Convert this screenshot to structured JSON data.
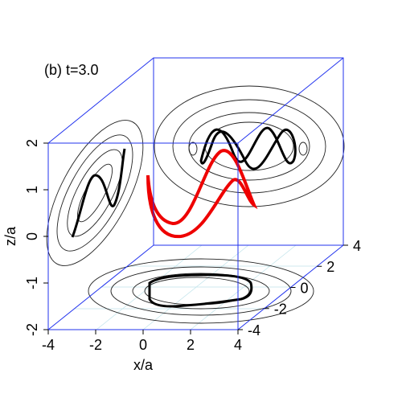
{
  "chart_data": {
    "type": "box3d",
    "title": "(b) t=3.0",
    "xlabel": "x/a",
    "zlabel": "z/a",
    "xlim": [
      -4,
      4
    ],
    "xticks": [
      -4,
      -2,
      0,
      2,
      4
    ],
    "ylim": [
      -4,
      4
    ],
    "yticks": [
      -4,
      -2,
      0,
      2,
      4
    ],
    "zlim": [
      -2,
      2
    ],
    "zticks": [
      -2,
      -1,
      0,
      1,
      2
    ]
  }
}
